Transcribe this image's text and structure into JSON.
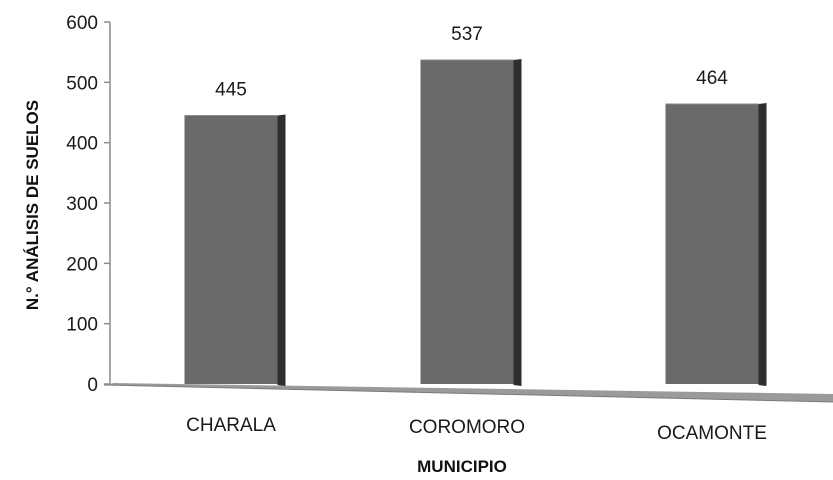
{
  "chart_data": {
    "type": "bar",
    "categories": [
      "CHARALA",
      "COROMORO",
      "OCAMONTE"
    ],
    "values": [
      445,
      537,
      464
    ],
    "data_labels": [
      "445",
      "537",
      "464"
    ],
    "xlabel": "MUNICIPIO",
    "ylabel": "N.° ANÁLISIS DE SUELOS",
    "ylim": [
      0,
      600
    ],
    "yticks": [
      "0",
      "100",
      "200",
      "300",
      "400",
      "500",
      "600"
    ],
    "grid": false,
    "legend": "none",
    "colors": {
      "bar_front": "#6a6a6a",
      "bar_side": "#2e2e2e",
      "floor": "#9a9a9a",
      "axis": "#8c8c8c"
    }
  }
}
